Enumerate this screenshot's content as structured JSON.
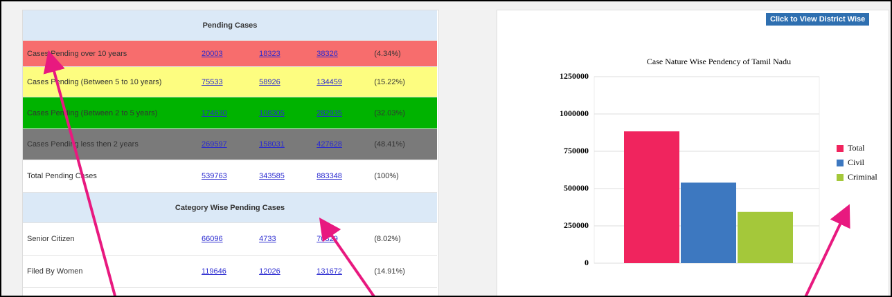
{
  "table": {
    "title": "Pending Cases",
    "rows": [
      [
        "Cases Pending over 10 years",
        "20003",
        "18323",
        "38326",
        "(4.34%)"
      ],
      [
        "Cases Pending (Between 5 to 10 years)",
        "75533",
        "58926",
        "134459",
        "(15.22%)"
      ],
      [
        "Cases Pending (Between 2 to 5 years)",
        "174630",
        "108305",
        "282935",
        "(32.03%)"
      ],
      [
        "Cases Pending less then 2 years",
        "269597",
        "158031",
        "427628",
        "(48.41%)"
      ],
      [
        "Total Pending Cases",
        "539763",
        "343585",
        "883348",
        "(100%)"
      ]
    ],
    "category_title": "Category Wise Pending Cases",
    "category_rows": [
      [
        "Senior Citizen",
        "66096",
        "4733",
        "70829",
        "(8.02%)"
      ],
      [
        "Filed By Women",
        "119646",
        "12026",
        "131672",
        "(14.91%)"
      ]
    ]
  },
  "button": "Click to View District Wise",
  "chart_data": {
    "type": "bar",
    "title": "Case Nature Wise Pendency of Tamil Nadu",
    "series": [
      {
        "name": "Total",
        "color": "#f0245e",
        "values": [
          883348
        ]
      },
      {
        "name": "Civil",
        "color": "#3d78c0",
        "values": [
          539763
        ]
      },
      {
        "name": "Criminal",
        "color": "#a4c83a",
        "values": [
          343585
        ]
      }
    ],
    "ylim": [
      0,
      1250000
    ],
    "yticks": [
      0,
      250000,
      500000,
      750000,
      1000000,
      1250000
    ],
    "grid": true,
    "legend": "right"
  }
}
